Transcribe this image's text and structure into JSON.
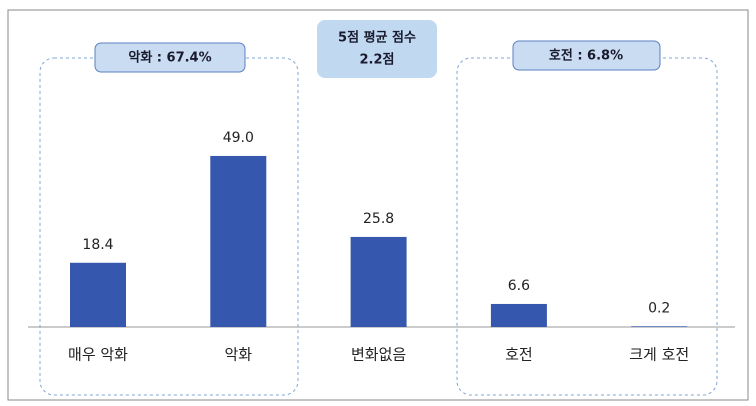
{
  "chart_data": {
    "type": "bar",
    "categories": [
      "매우 악화",
      "악화",
      "변화없음",
      "호전",
      "크게 호전"
    ],
    "values": [
      18.4,
      49.0,
      25.8,
      6.6,
      0.2
    ],
    "value_labels": [
      "18.4",
      "49.0",
      "25.8",
      "6.6",
      "0.2"
    ],
    "color": "#3557ad",
    "ylim": [
      0,
      55
    ],
    "annotations": [
      "악화 : 67.4%",
      "5점 평균 점수",
      "2.2점",
      "호전 : 6.8%"
    ]
  }
}
